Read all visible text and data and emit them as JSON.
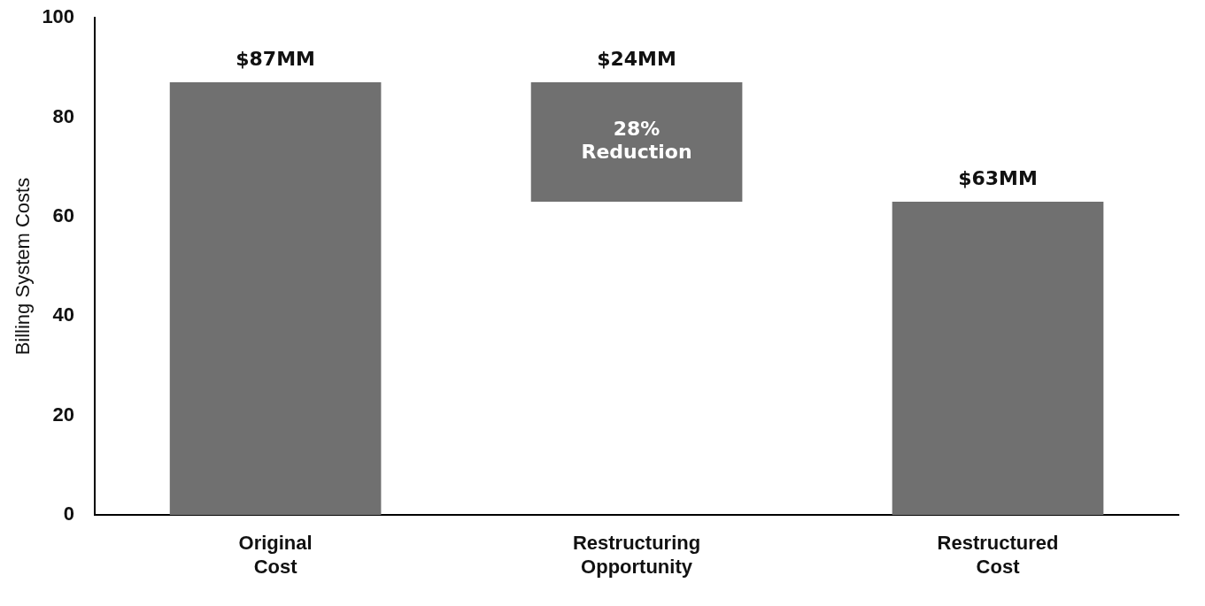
{
  "chart_data": {
    "type": "bar",
    "ylabel": "Billing System Costs",
    "categories": [
      "Original Cost",
      "Restructuring Opportunity",
      "Restructured Cost"
    ],
    "values": [
      87,
      24,
      63
    ],
    "base": [
      0,
      63,
      0
    ],
    "value_labels": [
      "$87MM",
      "$24MM",
      "$63MM"
    ],
    "color": "#707070",
    "ylim": [
      0,
      100
    ],
    "yticks": [
      0,
      20,
      40,
      60,
      80,
      100
    ],
    "grid": false,
    "legend": false,
    "annotations": [
      "28% Reduction"
    ]
  }
}
